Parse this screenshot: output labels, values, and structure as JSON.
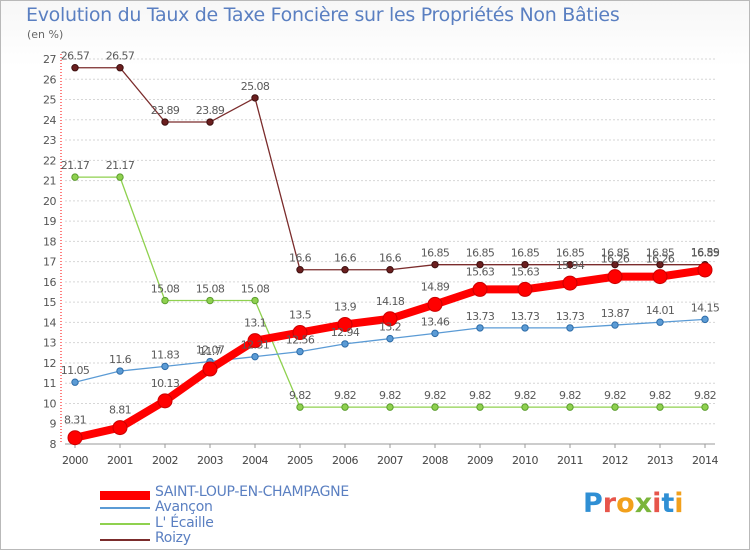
{
  "title": "Evolution du Taux de Taxe Foncière sur les Propriétés Non Bâties",
  "unit_label": "(en %)",
  "logo": {
    "text": "Proxiti",
    "letter_colors": [
      "#2f8fd4",
      "#e7554b",
      "#f2a01b",
      "#7ab53a",
      "#e7554b",
      "#2f8fd4",
      "#f2a01b"
    ]
  },
  "chart_data": {
    "type": "line",
    "x": [
      "2000",
      "2001",
      "2002",
      "2003",
      "2004",
      "2005",
      "2006",
      "2007",
      "2008",
      "2009",
      "2010",
      "2011",
      "2012",
      "2013",
      "2014"
    ],
    "ylim": [
      8,
      27
    ],
    "yticks": [
      8,
      9,
      10,
      11,
      12,
      13,
      14,
      15,
      16,
      17,
      18,
      19,
      20,
      21,
      22,
      23,
      24,
      25,
      26,
      27
    ],
    "grid": "y-dashed",
    "legend_position": "bottom-left",
    "series": [
      {
        "name": "SAINT-LOUP-EN-CHAMPAGNE",
        "color": "#ff0000",
        "values": [
          8.31,
          8.81,
          10.13,
          11.7,
          13.1,
          13.5,
          13.9,
          14.18,
          14.89,
          15.63,
          15.63,
          15.94,
          16.26,
          16.26,
          16.59
        ],
        "labels": [
          "8.31",
          "8.81",
          "10.13",
          "11.7",
          "13.1",
          "13.5",
          "13.9",
          "14.18",
          "14.89",
          "15.63",
          "15.63",
          "15.94",
          "16.26",
          "16.26",
          "16.59"
        ]
      },
      {
        "name": "Avançon",
        "color": "#5b9bd5",
        "values": [
          11.05,
          11.6,
          11.83,
          12.07,
          12.31,
          12.56,
          12.94,
          13.2,
          13.46,
          13.73,
          13.73,
          13.73,
          13.87,
          14.01,
          14.15
        ],
        "labels": [
          "11.05",
          "11.6",
          "11.83",
          "12.07",
          "12.31",
          "12.56",
          "12.94",
          "13.2",
          "13.46",
          "13.73",
          "13.73",
          "13.73",
          "13.87",
          "14.01",
          "14.15"
        ]
      },
      {
        "name": "L' Écaille",
        "color": "#8fd14f",
        "values": [
          21.17,
          21.17,
          15.08,
          15.08,
          15.08,
          9.82,
          9.82,
          9.82,
          9.82,
          9.82,
          9.82,
          9.82,
          9.82,
          9.82,
          9.82
        ],
        "labels": [
          "21.17",
          "21.17",
          "15.08",
          "15.08",
          "15.08",
          "9.82",
          "9.82",
          "9.82",
          "9.82",
          "9.82",
          "9.82",
          "9.82",
          "9.82",
          "9.82",
          "9.82"
        ]
      },
      {
        "name": "Roizy",
        "color": "#7b2c2c",
        "values": [
          26.57,
          26.57,
          23.89,
          23.89,
          25.08,
          16.6,
          16.6,
          16.6,
          16.85,
          16.85,
          16.85,
          16.85,
          16.85,
          16.85,
          16.85
        ],
        "labels": [
          "26.57",
          "26.57",
          "23.89",
          "23.89",
          "25.08",
          "16.6",
          "16.6",
          "16.6",
          "16.85",
          "16.85",
          "16.85",
          "16.85",
          "16.85",
          "16.85",
          "16.85"
        ]
      }
    ]
  }
}
